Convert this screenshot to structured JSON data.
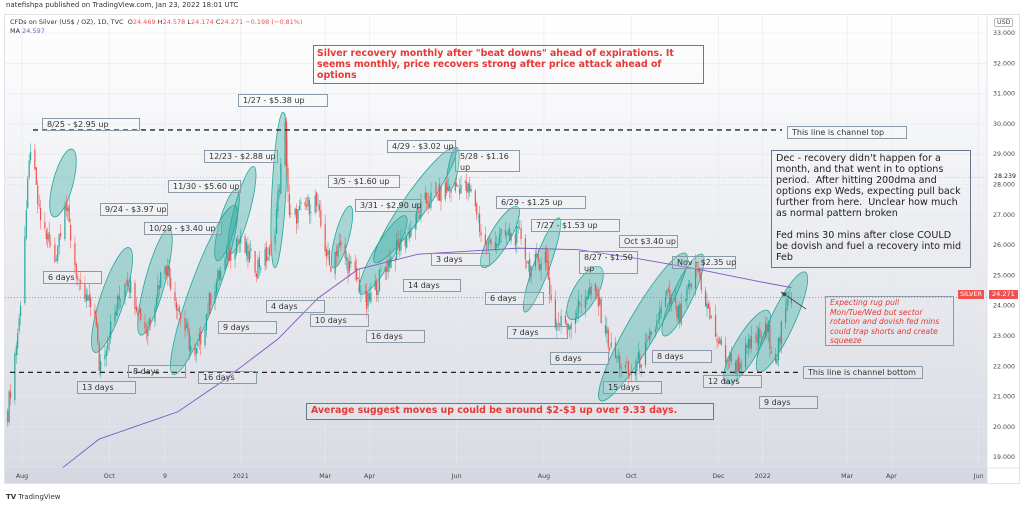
{
  "publisher": "natefishpa published on TradingView.com, Jan 23, 2022 18:01 UTC",
  "legend": {
    "symbol": "CFDs on Silver (US$ / OZ), 1D, TVC",
    "open_label": "O",
    "open": "24.469",
    "high_label": "H",
    "high": "24.578",
    "low_label": "L",
    "low": "24.174",
    "close_label": "C",
    "close": "24.271",
    "change": "−0.198 (−0.81%)",
    "ma_label": "MA",
    "ma_value": "24.597"
  },
  "currency": "USD",
  "footer": {
    "logo_mark": "TV",
    "brand": "TradingView"
  },
  "colors": {
    "up": "#26a69a",
    "down": "#ef5350",
    "ma": "#7e57c2",
    "ellipse": "#26a69a",
    "note_red": "#e53935"
  },
  "chart_data": {
    "type": "candlestick",
    "symbol_tag": "SILVER",
    "last_price": "24.271",
    "crosshair_price": "28.239",
    "ylim": [
      18.5,
      33.5
    ],
    "price_ticks": [
      "33.000",
      "32.000",
      "31.000",
      "30.000",
      "29.000",
      "28.000",
      "27.000",
      "26.000",
      "25.000",
      "24.000",
      "23.000",
      "22.000",
      "21.000",
      "20.000",
      "19.000"
    ],
    "time_ticks": [
      {
        "label": "Aug",
        "date": "2020-08-01"
      },
      {
        "label": "Oct",
        "date": "2020-10-01"
      },
      {
        "label": "9",
        "date": "2020-11-09"
      },
      {
        "label": "2021",
        "date": "2021-01-01"
      },
      {
        "label": "Mar",
        "date": "2021-03-01"
      },
      {
        "label": "Apr",
        "date": "2021-04-01"
      },
      {
        "label": "Jun",
        "date": "2021-06-01"
      },
      {
        "label": "Aug",
        "date": "2021-08-01"
      },
      {
        "label": "Oct",
        "date": "2021-10-01"
      },
      {
        "label": "Dec",
        "date": "2021-12-01"
      },
      {
        "label": "2022",
        "date": "2022-01-01"
      },
      {
        "label": "Mar",
        "date": "2022-03-01"
      },
      {
        "label": "Apr",
        "date": "2022-04-01"
      },
      {
        "label": "Jun",
        "date": "2022-06-01"
      }
    ],
    "grid": true,
    "approx_closes": [
      [
        "2020-07-22",
        20.5
      ],
      [
        "2020-07-30",
        23.5
      ],
      [
        "2020-08-07",
        29.3
      ],
      [
        "2020-08-13",
        27.0
      ],
      [
        "2020-08-24",
        25.5
      ],
      [
        "2020-08-31",
        27.5
      ],
      [
        "2020-09-10",
        24.5
      ],
      [
        "2020-09-21",
        23.8
      ],
      [
        "2020-09-24",
        22.0
      ],
      [
        "2020-10-13",
        25.0
      ],
      [
        "2020-10-27",
        23.2
      ],
      [
        "2020-11-09",
        25.5
      ],
      [
        "2020-11-19",
        23.8
      ],
      [
        "2020-11-30",
        22.2
      ],
      [
        "2020-12-12",
        24.5
      ],
      [
        "2020-12-29",
        26.2
      ],
      [
        "2021-01-12",
        25.3
      ],
      [
        "2021-01-23",
        25.8
      ],
      [
        "2021-02-01",
        29.8
      ],
      [
        "2021-02-04",
        26.8
      ],
      [
        "2021-02-22",
        27.5
      ],
      [
        "2021-03-04",
        25.3
      ],
      [
        "2021-03-10",
        26.0
      ],
      [
        "2021-03-25",
        24.7
      ],
      [
        "2021-03-30",
        24.0
      ],
      [
        "2021-04-12",
        25.3
      ],
      [
        "2021-04-26",
        26.2
      ],
      [
        "2021-05-10",
        27.4
      ],
      [
        "2021-05-24",
        27.8
      ],
      [
        "2021-06-04",
        28.0
      ],
      [
        "2021-06-13",
        27.6
      ],
      [
        "2021-06-20",
        25.9
      ],
      [
        "2021-07-05",
        26.3
      ],
      [
        "2021-07-16",
        26.3
      ],
      [
        "2021-07-22",
        25.2
      ],
      [
        "2021-08-02",
        25.7
      ],
      [
        "2021-08-08",
        23.4
      ],
      [
        "2021-08-20",
        23.5
      ],
      [
        "2021-08-30",
        24.4
      ],
      [
        "2021-09-07",
        24.3
      ],
      [
        "2021-09-17",
        22.5
      ],
      [
        "2021-09-30",
        21.7
      ],
      [
        "2021-10-12",
        22.6
      ],
      [
        "2021-10-26",
        24.3
      ],
      [
        "2021-11-04",
        23.6
      ],
      [
        "2021-11-16",
        25.3
      ],
      [
        "2021-11-25",
        23.6
      ],
      [
        "2021-12-04",
        22.4
      ],
      [
        "2021-12-14",
        22.0
      ],
      [
        "2021-12-25",
        22.8
      ],
      [
        "2022-01-04",
        23.2
      ],
      [
        "2022-01-10",
        22.3
      ],
      [
        "2022-01-18",
        24.0
      ],
      [
        "2022-01-20",
        24.5
      ],
      [
        "2022-01-21",
        24.27
      ]
    ],
    "moving_average": [
      [
        "2020-08-28",
        18.6
      ],
      [
        "2020-09-24",
        19.6
      ],
      [
        "2020-11-18",
        20.5
      ],
      [
        "2020-12-19",
        21.5
      ],
      [
        "2020-12-30",
        21.9
      ],
      [
        "2021-01-27",
        22.9
      ],
      [
        "2021-02-24",
        24.25
      ],
      [
        "2021-03-24",
        25.2
      ],
      [
        "2021-05-05",
        25.7
      ],
      [
        "2021-06-09",
        25.8
      ],
      [
        "2021-07-14",
        25.9
      ],
      [
        "2021-08-25",
        25.85
      ],
      [
        "2021-10-06",
        25.55
      ],
      [
        "2021-11-17",
        25.2
      ],
      [
        "2021-12-29",
        24.8
      ],
      [
        "2022-01-21",
        24.6
      ]
    ],
    "reference_lines": [
      {
        "label": "This line is channel top",
        "price": 29.8
      },
      {
        "label": "This line is channel bottom",
        "price": 21.8
      }
    ]
  },
  "notes": {
    "title": "Silver recovery monthly after \"beat downs\" ahead of expirations.  It seems monthly, price recovers strong after price attack ahead of options",
    "dec": "Dec - recovery didn't happen for a month, and that went in to options period.  After hitting 200dma and options exp Weds, expecting pull back further from here.  Unclear how much as normal pattern broken\n\nFed mins 30 mins after close COULD be dovish and fuel a recovery into mid Feb",
    "expecting": "Expecting rug pull Mon/Tue/Wed but sector rotation and dovish fed mins could trap shorts and create squeeze",
    "average": "Average suggest moves up could be around $2-$3 up over 9.33 days.",
    "channel_top": "This line is channel top",
    "channel_bottom": "This line is channel bottom"
  },
  "moves": [
    "8/25 - $2.95 up",
    "1/27 - $5.38 up",
    "12/23 - $2.88 up",
    "11/30 - $5.60 up",
    "9/24 - $3.97 up",
    "10/29 - $3.40 up",
    "4/29 - $3.02 up",
    "5/28 - $1.16 up",
    "3/5 - $1.60 up",
    "3/31 - $2.90 up",
    "6/29 - $1.25 up",
    "7/27 - $1.53 up",
    "Oct $3.40 up",
    "8/27 - $1.50 up",
    "Nov - $2.35 up"
  ],
  "durations": [
    "6 days",
    "13 days",
    "8 days",
    "16 days",
    "9 days",
    "4 days",
    "10 days",
    "16 days",
    "14 days",
    "3 days",
    "6 days",
    "7 days",
    "6 days",
    "15 days",
    "8 days",
    "12 days",
    "9 days"
  ]
}
